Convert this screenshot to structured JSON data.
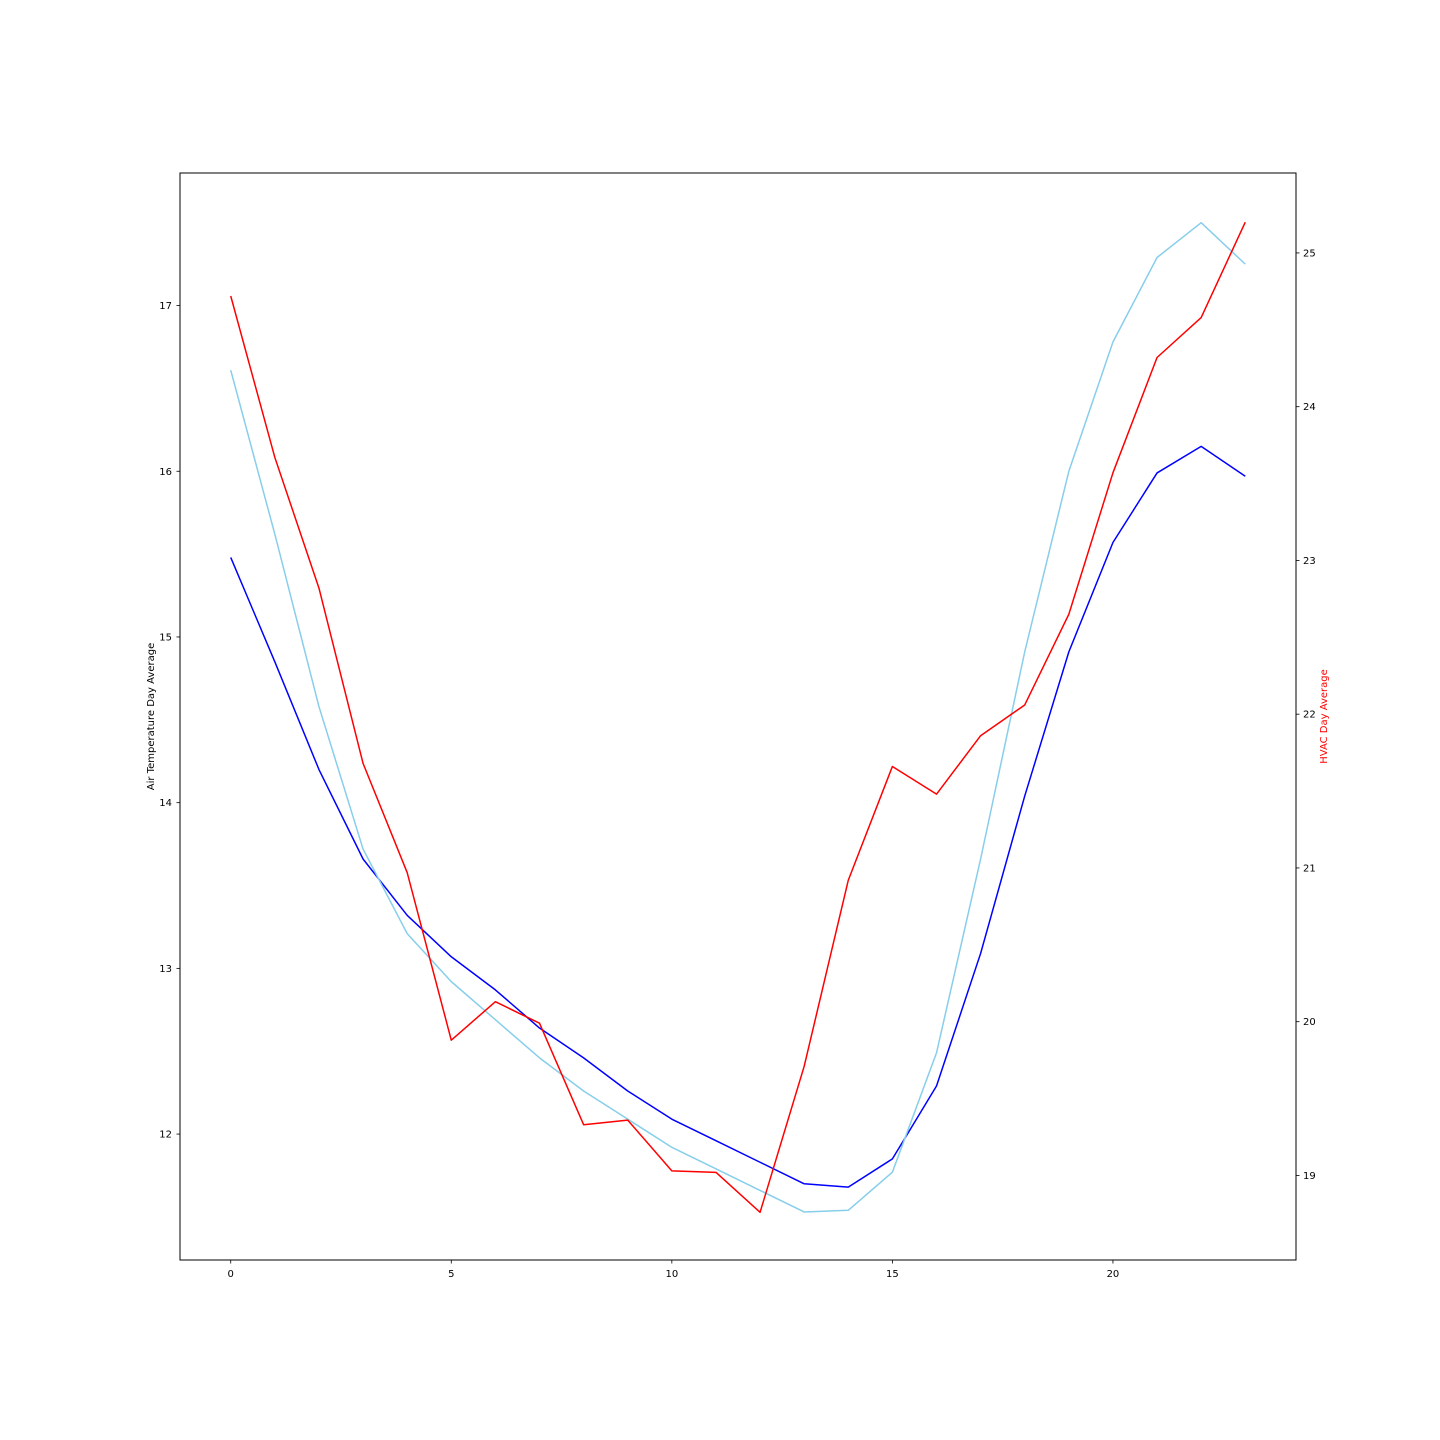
{
  "chart_data": {
    "type": "line",
    "title": "",
    "x": [
      0,
      1,
      2,
      3,
      4,
      5,
      6,
      7,
      8,
      9,
      10,
      11,
      12,
      13,
      14,
      15,
      16,
      17,
      18,
      19,
      20,
      21,
      22,
      23
    ],
    "xticks": [
      0,
      5,
      10,
      15,
      20
    ],
    "xlim": [
      -1.15,
      24.15
    ],
    "left_axis": {
      "label": "Air Temperature Day Average",
      "label_color": "#000000",
      "ylim": [
        11.24,
        17.8
      ],
      "ticks": [
        12,
        13,
        14,
        15,
        16,
        17
      ]
    },
    "right_axis": {
      "label": "HVAC Day Average",
      "label_color": "#ff0000",
      "ylim": [
        18.45,
        25.52
      ],
      "ticks": [
        19,
        20,
        21,
        22,
        23,
        24,
        25
      ]
    },
    "series": [
      {
        "axis": "left",
        "color": "#0000ff",
        "values": [
          15.48,
          14.85,
          14.2,
          13.66,
          13.32,
          13.07,
          12.87,
          12.64,
          12.46,
          12.26,
          12.09,
          11.96,
          11.83,
          11.7,
          11.68,
          11.85,
          12.29,
          13.09,
          14.04,
          14.91,
          15.57,
          15.99,
          16.15,
          15.97
        ]
      },
      {
        "axis": "left",
        "color": "#87ceeb",
        "values": [
          16.61,
          15.62,
          14.58,
          13.72,
          13.21,
          12.92,
          12.69,
          12.46,
          12.26,
          12.09,
          11.92,
          11.79,
          11.66,
          11.53,
          11.54,
          11.77,
          12.49,
          13.66,
          14.91,
          16.0,
          16.78,
          17.29,
          17.5,
          17.25
        ]
      },
      {
        "axis": "right",
        "color": "#ff0000",
        "values": [
          24.72,
          23.67,
          22.82,
          21.68,
          20.97,
          19.88,
          20.13,
          19.99,
          19.33,
          19.36,
          19.03,
          19.02,
          18.76,
          19.71,
          20.92,
          21.66,
          21.48,
          21.86,
          22.06,
          22.65,
          23.57,
          24.32,
          24.58,
          25.2
        ]
      }
    ]
  }
}
